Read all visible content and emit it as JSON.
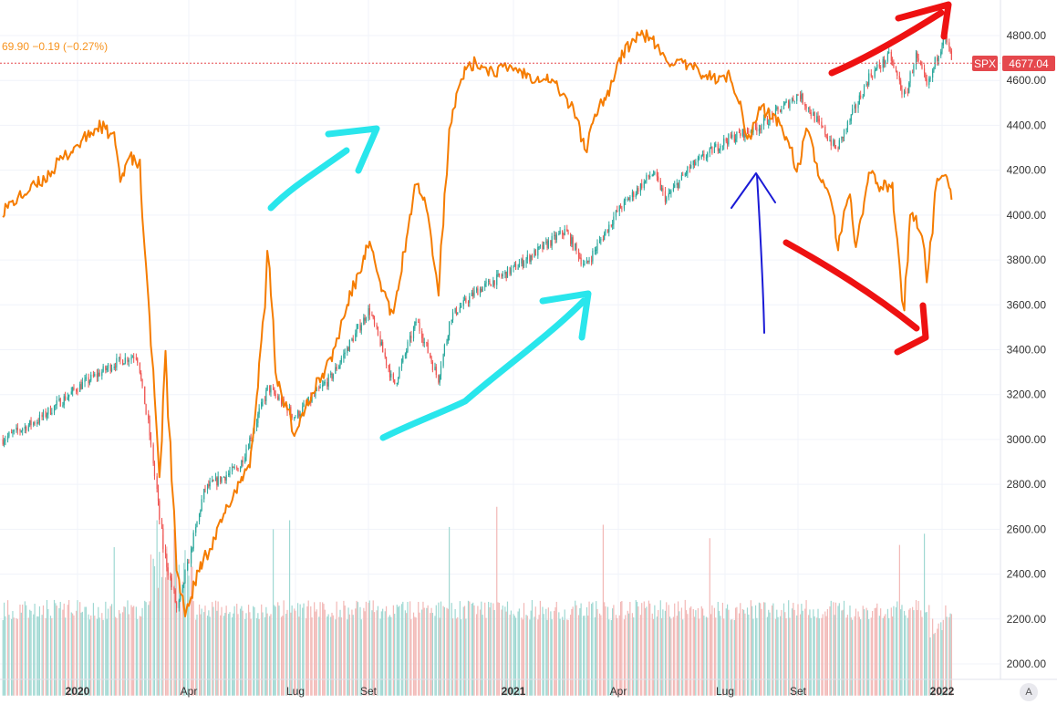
{
  "legend": {
    "text": "69.90  −0.19 (−0.27%)"
  },
  "price_tag": {
    "symbol": "SPX",
    "value": "4677.04",
    "color": "#e5484d"
  },
  "auto_button": {
    "label": "A"
  },
  "colors": {
    "up": "#26a69a",
    "down": "#ef5350",
    "overlay": "#f57c00",
    "cyan_arrows": "#29e6ec",
    "red_arrows": "#ee1111",
    "blue_arrow": "#1a1ad6",
    "grid": "#f0f3fa"
  },
  "chart_data": {
    "type": "line",
    "title": "",
    "xlabel": "",
    "ylabel": "",
    "x_ticks": [
      {
        "label": "2020",
        "date": "2020-01-01"
      },
      {
        "label": "Apr",
        "date": "2020-04-01"
      },
      {
        "label": "Lug",
        "date": "2020-07-01"
      },
      {
        "label": "Set",
        "date": "2020-09-01"
      },
      {
        "label": "2021",
        "date": "2021-01-01"
      },
      {
        "label": "Apr",
        "date": "2021-04-01"
      },
      {
        "label": "Lug",
        "date": "2021-07-01"
      },
      {
        "label": "Set",
        "date": "2021-09-01"
      },
      {
        "label": "2022",
        "date": "2022-01-01"
      }
    ],
    "y_ticks": [
      2000,
      2200,
      2400,
      2600,
      2800,
      3000,
      3200,
      3400,
      3600,
      3800,
      4000,
      4200,
      4400,
      4600,
      4800
    ],
    "ylim": [
      1940,
      4880
    ],
    "grid": true,
    "series": [
      {
        "name": "SPX",
        "style": "candlestick",
        "points": [
          {
            "x": "2019-11-01",
            "y": 3000
          },
          {
            "x": "2019-12-01",
            "y": 3090
          },
          {
            "x": "2020-01-01",
            "y": 3230
          },
          {
            "x": "2020-02-01",
            "y": 3340
          },
          {
            "x": "2020-02-19",
            "y": 3380
          },
          {
            "x": "2020-03-01",
            "y": 3000
          },
          {
            "x": "2020-03-12",
            "y": 2500
          },
          {
            "x": "2020-03-23",
            "y": 2240
          },
          {
            "x": "2020-04-15",
            "y": 2780
          },
          {
            "x": "2020-05-15",
            "y": 2880
          },
          {
            "x": "2020-06-08",
            "y": 3230
          },
          {
            "x": "2020-07-01",
            "y": 3100
          },
          {
            "x": "2020-08-01",
            "y": 3280
          },
          {
            "x": "2020-09-02",
            "y": 3580
          },
          {
            "x": "2020-09-23",
            "y": 3240
          },
          {
            "x": "2020-10-12",
            "y": 3530
          },
          {
            "x": "2020-10-30",
            "y": 3270
          },
          {
            "x": "2020-11-10",
            "y": 3550
          },
          {
            "x": "2020-12-01",
            "y": 3660
          },
          {
            "x": "2021-01-01",
            "y": 3760
          },
          {
            "x": "2021-02-15",
            "y": 3930
          },
          {
            "x": "2021-03-04",
            "y": 3770
          },
          {
            "x": "2021-04-01",
            "y": 4020
          },
          {
            "x": "2021-05-01",
            "y": 4190
          },
          {
            "x": "2021-05-12",
            "y": 4070
          },
          {
            "x": "2021-06-01",
            "y": 4210
          },
          {
            "x": "2021-07-01",
            "y": 4330
          },
          {
            "x": "2021-08-01",
            "y": 4400
          },
          {
            "x": "2021-09-02",
            "y": 4540
          },
          {
            "x": "2021-10-04",
            "y": 4290
          },
          {
            "x": "2021-11-01",
            "y": 4620
          },
          {
            "x": "2021-11-18",
            "y": 4710
          },
          {
            "x": "2021-12-01",
            "y": 4520
          },
          {
            "x": "2021-12-10",
            "y": 4710
          },
          {
            "x": "2021-12-20",
            "y": 4570
          },
          {
            "x": "2022-01-03",
            "y": 4800
          },
          {
            "x": "2022-01-11",
            "y": 4677
          }
        ]
      },
      {
        "name": "",
        "style": "line",
        "points": [
          {
            "x": "2019-11-01",
            "y": 4020
          },
          {
            "x": "2019-11-20",
            "y": 4100
          },
          {
            "x": "2019-12-05",
            "y": 4160
          },
          {
            "x": "2019-12-20",
            "y": 4250
          },
          {
            "x": "2020-01-05",
            "y": 4330
          },
          {
            "x": "2020-01-20",
            "y": 4400
          },
          {
            "x": "2020-02-01",
            "y": 4340
          },
          {
            "x": "2020-02-05",
            "y": 4150
          },
          {
            "x": "2020-02-12",
            "y": 4260
          },
          {
            "x": "2020-02-21",
            "y": 4220
          },
          {
            "x": "2020-02-26",
            "y": 3800
          },
          {
            "x": "2020-03-03",
            "y": 3300
          },
          {
            "x": "2020-03-09",
            "y": 2800
          },
          {
            "x": "2020-03-13",
            "y": 3380
          },
          {
            "x": "2020-03-18",
            "y": 2900
          },
          {
            "x": "2020-03-23",
            "y": 2400
          },
          {
            "x": "2020-03-30",
            "y": 2220
          },
          {
            "x": "2020-04-10",
            "y": 2420
          },
          {
            "x": "2020-04-25",
            "y": 2580
          },
          {
            "x": "2020-05-10",
            "y": 2760
          },
          {
            "x": "2020-05-25",
            "y": 2920
          },
          {
            "x": "2020-06-05",
            "y": 3600
          },
          {
            "x": "2020-06-08",
            "y": 3860
          },
          {
            "x": "2020-06-15",
            "y": 3280
          },
          {
            "x": "2020-06-30",
            "y": 3040
          },
          {
            "x": "2020-07-15",
            "y": 3200
          },
          {
            "x": "2020-08-01",
            "y": 3360
          },
          {
            "x": "2020-08-15",
            "y": 3610
          },
          {
            "x": "2020-09-02",
            "y": 3870
          },
          {
            "x": "2020-09-10",
            "y": 3720
          },
          {
            "x": "2020-09-22",
            "y": 3540
          },
          {
            "x": "2020-10-01",
            "y": 3820
          },
          {
            "x": "2020-10-12",
            "y": 4160
          },
          {
            "x": "2020-10-20",
            "y": 4060
          },
          {
            "x": "2020-10-30",
            "y": 3660
          },
          {
            "x": "2020-11-09",
            "y": 4420
          },
          {
            "x": "2020-11-20",
            "y": 4630
          },
          {
            "x": "2020-12-01",
            "y": 4680
          },
          {
            "x": "2020-12-15",
            "y": 4640
          },
          {
            "x": "2021-01-01",
            "y": 4660
          },
          {
            "x": "2021-01-15",
            "y": 4620
          },
          {
            "x": "2021-02-01",
            "y": 4610
          },
          {
            "x": "2021-02-10",
            "y": 4560
          },
          {
            "x": "2021-02-25",
            "y": 4440
          },
          {
            "x": "2021-03-04",
            "y": 4280
          },
          {
            "x": "2021-03-15",
            "y": 4480
          },
          {
            "x": "2021-03-25",
            "y": 4560
          },
          {
            "x": "2021-04-01",
            "y": 4680
          },
          {
            "x": "2021-04-15",
            "y": 4790
          },
          {
            "x": "2021-04-28",
            "y": 4800
          },
          {
            "x": "2021-05-10",
            "y": 4700
          },
          {
            "x": "2021-05-20",
            "y": 4680
          },
          {
            "x": "2021-06-10",
            "y": 4640
          },
          {
            "x": "2021-06-25",
            "y": 4600
          },
          {
            "x": "2021-07-05",
            "y": 4620
          },
          {
            "x": "2021-07-15",
            "y": 4500
          },
          {
            "x": "2021-07-20",
            "y": 4320
          },
          {
            "x": "2021-08-01",
            "y": 4480
          },
          {
            "x": "2021-08-15",
            "y": 4420
          },
          {
            "x": "2021-08-25",
            "y": 4320
          },
          {
            "x": "2021-09-01",
            "y": 4200
          },
          {
            "x": "2021-09-10",
            "y": 4390
          },
          {
            "x": "2021-09-20",
            "y": 4160
          },
          {
            "x": "2021-10-01",
            "y": 4040
          },
          {
            "x": "2021-10-05",
            "y": 3860
          },
          {
            "x": "2021-10-15",
            "y": 4100
          },
          {
            "x": "2021-10-20",
            "y": 3840
          },
          {
            "x": "2021-11-01",
            "y": 4200
          },
          {
            "x": "2021-11-10",
            "y": 4120
          },
          {
            "x": "2021-11-20",
            "y": 4140
          },
          {
            "x": "2021-11-30",
            "y": 3560
          },
          {
            "x": "2021-12-06",
            "y": 4040
          },
          {
            "x": "2021-12-15",
            "y": 3900
          },
          {
            "x": "2021-12-20",
            "y": 3720
          },
          {
            "x": "2021-12-28",
            "y": 4150
          },
          {
            "x": "2022-01-04",
            "y": 4200
          },
          {
            "x": "2022-01-11",
            "y": 4070
          }
        ]
      }
    ],
    "volume": {
      "style": "bars",
      "baseline": 1940,
      "typical": 2240,
      "spikes": [
        {
          "x": "2020-01-31",
          "y": 2520
        },
        {
          "x": "2020-03-06",
          "y": 2640
        },
        {
          "x": "2020-03-20",
          "y": 2600
        },
        {
          "x": "2020-06-12",
          "y": 2600
        },
        {
          "x": "2020-06-26",
          "y": 2640
        },
        {
          "x": "2020-11-09",
          "y": 2610
        },
        {
          "x": "2020-12-18",
          "y": 2700
        },
        {
          "x": "2021-03-19",
          "y": 2620
        },
        {
          "x": "2021-06-18",
          "y": 2560
        },
        {
          "x": "2021-11-26",
          "y": 2530
        },
        {
          "x": "2021-12-17",
          "y": 2580
        }
      ]
    },
    "current_price_line": 4677.04
  }
}
